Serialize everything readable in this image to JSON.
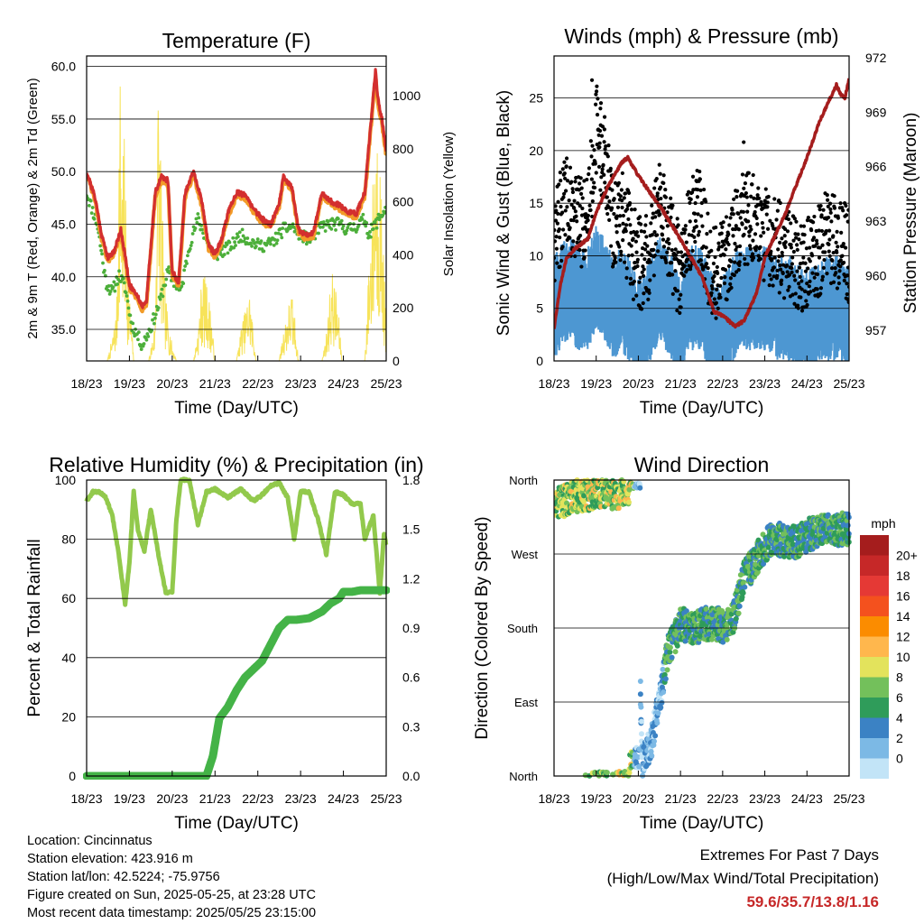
{
  "colors": {
    "temp_2m": "#d32f2f",
    "temp_9m": "#f29b28",
    "dewpoint": "#4caf3a",
    "solar": "#f7e35a",
    "gust": "#000000",
    "wind": "#4d97d2",
    "pressure": "#a51d1d",
    "rh": "#92c94c",
    "rain": "#44b347",
    "grid": "#000000",
    "extremes_text": "#c62828"
  },
  "time_ticks": [
    "18/23",
    "19/23",
    "20/23",
    "21/23",
    "22/23",
    "23/23",
    "24/23",
    "25/23"
  ],
  "chart_data": [
    {
      "type": "line",
      "title": "Temperature (F)",
      "xlabel": "Time (Day/UTC)",
      "ylabel": "2m & 9m T (Red, Orange) & 2m Td (Green)",
      "y2label": "Solar Insolation (Yellow)",
      "ylim": [
        32,
        61
      ],
      "y2lim": [
        0,
        1150
      ],
      "yticks": [
        "35.0",
        "40.0",
        "45.0",
        "50.0",
        "55.0",
        "60.0"
      ],
      "y2ticks": [
        "0",
        "200",
        "400",
        "600",
        "800",
        "1000"
      ],
      "grid": true,
      "series": [
        {
          "key": "t2m",
          "x": [
            0,
            0.2,
            0.35,
            0.5,
            0.65,
            0.8,
            0.9,
            1,
            1.15,
            1.3,
            1.4,
            1.5,
            1.6,
            1.75,
            1.9,
            2,
            2.15,
            2.3,
            2.5,
            2.7,
            2.85,
            3,
            3.15,
            3.3,
            3.5,
            3.7,
            3.9,
            4.1,
            4.3,
            4.5,
            4.6,
            4.8,
            4.95,
            5.1,
            5.3,
            5.5,
            5.7,
            5.9,
            6.1,
            6.3,
            6.5,
            6.65,
            6.75,
            6.8,
            6.9,
            7
          ],
          "y": [
            50,
            47.5,
            44,
            41.8,
            42.5,
            44.5,
            42,
            39.2,
            38.5,
            37.2,
            37.8,
            42.8,
            48,
            49.5,
            49.2,
            40.5,
            39.5,
            48,
            50,
            47,
            43,
            42.2,
            43.5,
            46,
            48,
            47.8,
            46.5,
            45.5,
            45,
            47,
            49.5,
            48.5,
            44.5,
            44,
            44.2,
            48,
            47.2,
            46.8,
            46.2,
            46,
            48,
            55,
            59.6,
            57,
            55,
            52
          ]
        },
        {
          "key": "t9m",
          "x": [
            0,
            0.2,
            0.35,
            0.5,
            0.65,
            0.8,
            0.9,
            1,
            1.15,
            1.3,
            1.4,
            1.5,
            1.6,
            1.75,
            1.9,
            2,
            2.15,
            2.3,
            2.5,
            2.7,
            2.85,
            3,
            3.15,
            3.3,
            3.5,
            3.7,
            3.9,
            4.1,
            4.3,
            4.5,
            4.6,
            4.8,
            4.95,
            5.1,
            5.3,
            5.5,
            5.7,
            5.9,
            6.1,
            6.3,
            6.5,
            6.65,
            6.75,
            6.8,
            6.9,
            7
          ],
          "y": [
            49.8,
            47.2,
            43.6,
            41.5,
            42.3,
            44.2,
            41.6,
            38.9,
            38.1,
            36.9,
            37.4,
            42.4,
            47.6,
            49.2,
            48.8,
            40.2,
            39.1,
            47.6,
            49.7,
            46.6,
            42.7,
            41.9,
            43.2,
            45.7,
            47.7,
            47.5,
            46.2,
            45.2,
            44.7,
            46.7,
            49.2,
            48.2,
            44.2,
            43.7,
            43.9,
            47.7,
            46.9,
            46.5,
            45.9,
            45.7,
            47.7,
            54.6,
            59.1,
            56.6,
            54.6,
            51.6
          ]
        },
        {
          "key": "td",
          "x": [
            0,
            0.25,
            0.45,
            0.6,
            0.75,
            0.9,
            1.05,
            1.3,
            1.5,
            1.7,
            1.9,
            2.05,
            2.2,
            2.4,
            2.6,
            2.8,
            3,
            3.2,
            3.4,
            3.6,
            3.8,
            4,
            4.2,
            4.4,
            4.6,
            4.8,
            5,
            5.2,
            5.5,
            5.7,
            5.9,
            6.1,
            6.3,
            6.5,
            6.6,
            6.75,
            6.9,
            7
          ],
          "y": [
            48,
            45,
            39.5,
            38.5,
            40.2,
            39,
            35.5,
            33.5,
            35.2,
            37.5,
            40.5,
            39.5,
            38.5,
            43,
            45.5,
            43.5,
            42,
            42.5,
            43,
            44,
            43.5,
            43,
            43,
            43.5,
            44.5,
            44.8,
            44,
            43.5,
            44.8,
            45,
            45,
            44.5,
            44.8,
            45.5,
            44,
            45,
            46,
            46.5
          ]
        },
        {
          "key": "solar",
          "x": [
            0.48,
            0.6,
            0.7,
            0.78,
            0.83,
            0.87,
            0.92,
            0.98,
            1.05,
            1.1,
            1.2,
            1.45,
            1.6,
            1.66,
            1.72,
            1.78,
            1.84,
            1.92,
            2.0,
            2.1,
            2.5,
            2.62,
            2.7,
            2.8,
            2.9,
            3.0,
            3.5,
            3.62,
            3.72,
            3.8,
            3.88,
            3.96,
            4.5,
            4.6,
            4.7,
            4.78,
            4.86,
            4.95,
            5.5,
            5.62,
            5.72,
            5.8,
            5.88,
            5.97,
            6.5,
            6.6,
            6.68,
            6.75,
            6.82,
            6.9,
            6.98,
            7.0
          ],
          "y": [
            0,
            90,
            200,
            1130,
            800,
            900,
            600,
            300,
            150,
            0,
            0,
            0,
            150,
            1100,
            950,
            500,
            250,
            150,
            60,
            0,
            0,
            150,
            350,
            300,
            200,
            0,
            0,
            140,
            200,
            280,
            150,
            0,
            0,
            120,
            200,
            270,
            180,
            0,
            0,
            130,
            350,
            300,
            200,
            0,
            0,
            400,
            650,
            1000,
            900,
            600,
            200,
            0
          ]
        }
      ]
    },
    {
      "type": "scatter",
      "title": "Winds (mph) & Pressure (mb)",
      "xlabel": "Time (Day/UTC)",
      "ylabel": "Sonic Wind & Gust (Blue, Black)",
      "y2label": "Station Pressure (Maroon)",
      "ylim": [
        0,
        29
      ],
      "y2lim": [
        955.3,
        972.1
      ],
      "yticks": [
        "0",
        "5",
        "10",
        "15",
        "20",
        "25"
      ],
      "y2ticks": [
        "957",
        "960",
        "963",
        "966",
        "969",
        "972"
      ],
      "grid": true,
      "series": [
        {
          "key": "gust_env",
          "x": [
            0,
            0.3,
            0.6,
            0.8,
            1.0,
            1.2,
            1.4,
            1.6,
            1.9,
            2.1,
            2.3,
            2.5,
            2.8,
            3.0,
            3.2,
            3.45,
            3.7,
            3.9,
            4.1,
            4.4,
            4.7,
            5.0,
            5.3,
            5.6,
            5.9,
            6.2,
            6.5,
            6.8,
            7
          ],
          "y": [
            12,
            15,
            13,
            14,
            22,
            19,
            13,
            14,
            10,
            9,
            11,
            15,
            11,
            8,
            13,
            14,
            9,
            8,
            10,
            13,
            14,
            12,
            11,
            10,
            9,
            10,
            12,
            11,
            10
          ]
        },
        {
          "key": "wind_env",
          "x": [
            0,
            0.3,
            0.6,
            0.8,
            1.0,
            1.2,
            1.4,
            1.6,
            1.9,
            2.1,
            2.3,
            2.5,
            2.8,
            3.0,
            3.2,
            3.45,
            3.7,
            3.9,
            4.1,
            4.4,
            4.7,
            5.0,
            5.3,
            5.6,
            5.9,
            6.2,
            6.5,
            6.8,
            7
          ],
          "y": [
            6,
            8,
            7,
            7,
            9,
            8,
            6,
            7,
            5,
            4,
            6,
            8,
            6,
            4,
            7,
            7,
            5,
            3,
            5,
            7,
            7,
            7,
            6,
            6,
            5,
            5,
            6,
            6,
            5
          ]
        },
        {
          "key": "pressure",
          "x": [
            0,
            0.15,
            0.3,
            0.5,
            0.8,
            1.0,
            1.3,
            1.6,
            1.75,
            2.0,
            2.3,
            2.6,
            3.0,
            3.5,
            3.8,
            4.0,
            4.3,
            4.5,
            4.8,
            5.0,
            5.5,
            6.0,
            6.3,
            6.5,
            6.7,
            6.8,
            6.9,
            7
          ],
          "y": [
            957.1,
            959.5,
            961,
            961.5,
            962,
            963.5,
            965,
            966.2,
            966.5,
            965.5,
            964.5,
            963.5,
            962,
            960,
            958,
            957.8,
            957.2,
            957.5,
            959,
            961,
            963.5,
            966.5,
            968.5,
            969.5,
            970.5,
            970,
            969.8,
            970.8
          ]
        }
      ]
    },
    {
      "type": "line",
      "title": "Relative Humidity (%) & Precipitation (in)",
      "xlabel": "Time (Day/UTC)",
      "ylabel": "Percent & Total Rainfall",
      "ylim": [
        0,
        100
      ],
      "y2lim": [
        0,
        1.8
      ],
      "yticks": [
        "0",
        "20",
        "40",
        "60",
        "80",
        "100"
      ],
      "y2ticks": [
        "0.0",
        "0.3",
        "0.6",
        "0.9",
        "1.2",
        "1.5",
        "1.8"
      ],
      "grid": true,
      "series": [
        {
          "key": "rh",
          "x": [
            0,
            0.15,
            0.3,
            0.45,
            0.6,
            0.75,
            0.9,
            1.0,
            1.1,
            1.2,
            1.35,
            1.5,
            1.7,
            1.85,
            2.0,
            2.1,
            2.2,
            2.4,
            2.6,
            2.8,
            3.0,
            3.3,
            3.6,
            3.9,
            4.1,
            4.3,
            4.5,
            4.7,
            4.85,
            5.0,
            5.2,
            5.4,
            5.6,
            5.8,
            6.0,
            6.2,
            6.4,
            6.5,
            6.7,
            6.85,
            6.95,
            7
          ],
          "y": [
            93,
            96,
            96,
            94,
            88,
            75,
            58,
            72,
            96,
            83,
            76,
            90,
            73,
            62,
            62,
            87,
            100,
            100,
            85,
            96,
            97,
            94,
            97,
            93,
            95,
            98,
            99,
            94,
            80,
            96,
            96,
            87,
            75,
            96,
            95,
            92,
            92,
            80,
            88,
            62,
            82,
            78
          ]
        },
        {
          "key": "rain",
          "x": [
            0,
            1.5,
            2.8,
            2.95,
            3.1,
            3.3,
            3.5,
            3.7,
            3.9,
            4.1,
            4.3,
            4.5,
            4.7,
            4.9,
            5.2,
            5.5,
            5.7,
            5.9,
            6.0,
            6.2,
            6.4,
            6.6,
            7
          ],
          "y": [
            0,
            0,
            0,
            0.12,
            0.35,
            0.42,
            0.52,
            0.6,
            0.65,
            0.7,
            0.8,
            0.9,
            0.95,
            0.95,
            0.96,
            1.0,
            1.05,
            1.08,
            1.12,
            1.12,
            1.13,
            1.13,
            1.13
          ]
        }
      ]
    },
    {
      "type": "scatter",
      "title": "Wind Direction",
      "xlabel": "Time (Day/UTC)",
      "ylabel": "Direction (Colored By Speed)",
      "ylim": [
        0,
        360
      ],
      "yticks": [
        "North",
        "East",
        "South",
        "West",
        "North"
      ],
      "grid": true,
      "legend": {
        "title": "mph",
        "labels": [
          "20+",
          "18",
          "16",
          "14",
          "12",
          "10",
          "8",
          "6",
          "4",
          "2",
          "0"
        ],
        "colors": [
          "#a51d1d",
          "#c62828",
          "#e53935",
          "#f4511e",
          "#fb8c00",
          "#ffb74d",
          "#e3e35c",
          "#73c05b",
          "#2f9c5a",
          "#3b82c4",
          "#7cb9e5",
          "#c2e4f7"
        ]
      },
      "series": [
        {
          "key": "dir_center",
          "x": [
            0,
            0.5,
            1,
            1.5,
            1.9,
            2.1,
            2.3,
            2.5,
            2.7,
            3,
            3.3,
            3.6,
            3.9,
            4.1,
            4.3,
            4.5,
            4.8,
            5,
            5.2,
            5.5,
            5.8,
            6.1,
            6.4,
            6.7,
            7
          ],
          "y": [
            330,
            340,
            345,
            345,
            350,
            20,
            40,
            90,
            150,
            185,
            180,
            185,
            185,
            180,
            200,
            240,
            265,
            280,
            290,
            285,
            285,
            295,
            300,
            300,
            300
          ]
        }
      ]
    }
  ],
  "station_info": {
    "location": "Location: Cincinnatus",
    "elevation": "Station elevation: 423.916 m",
    "latlon": "Station lat/lon: 42.5224; -75.9756",
    "created": "Figure created on Sun, 2025-05-25, at 23:28 UTC",
    "recent": "Most recent data timestamp: 2025/05/25 23:15:00"
  },
  "extremes": {
    "line1": "Extremes For Past 7 Days",
    "line2": "(High/Low/Max Wind/Total Precipitation)",
    "values": "59.6/35.7/13.8/1.16"
  }
}
